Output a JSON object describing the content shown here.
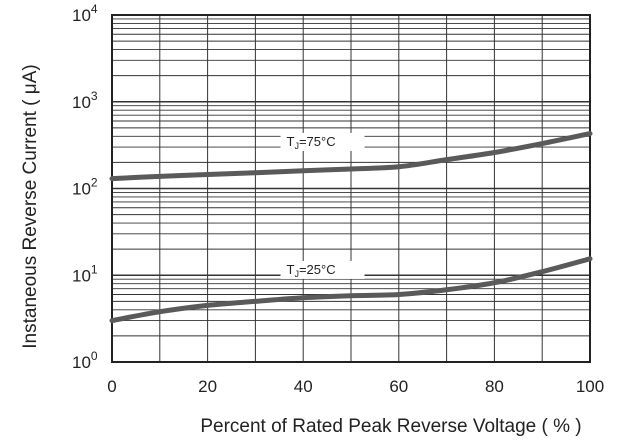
{
  "chart_data": {
    "type": "line",
    "title": "",
    "xlabel": "Percent of Rated Peak Reverse Voltage ( % )",
    "ylabel": "Instaneous Reverse Current ( μA)",
    "x_ticks": [
      "0",
      "20",
      "40",
      "60",
      "80",
      "100"
    ],
    "y_ticks": [
      {
        "base": "10",
        "exp": "0"
      },
      {
        "base": "10",
        "exp": "1"
      },
      {
        "base": "10",
        "exp": "2"
      },
      {
        "base": "10",
        "exp": "3"
      },
      {
        "base": "10",
        "exp": "4"
      }
    ],
    "xlim": [
      0,
      100
    ],
    "ylim": [
      1,
      10000
    ],
    "y_scale": "log",
    "grid": true,
    "line_color": "#5a5a5a",
    "series": [
      {
        "label": {
          "prefix": "T",
          "sub": "J",
          "suffix": "=75°C"
        },
        "x": [
          0,
          10,
          20,
          30,
          40,
          50,
          60,
          70,
          80,
          90,
          100
        ],
        "y": [
          130,
          138,
          145,
          152,
          160,
          168,
          178,
          215,
          260,
          330,
          430
        ]
      },
      {
        "label": {
          "prefix": "T",
          "sub": "J",
          "suffix": "=25°C"
        },
        "x": [
          0,
          10,
          20,
          30,
          40,
          50,
          60,
          70,
          80,
          90,
          100
        ],
        "y": [
          3.0,
          3.8,
          4.5,
          5.0,
          5.5,
          5.8,
          6.0,
          6.8,
          8.2,
          11.0,
          15.5
        ]
      }
    ]
  }
}
